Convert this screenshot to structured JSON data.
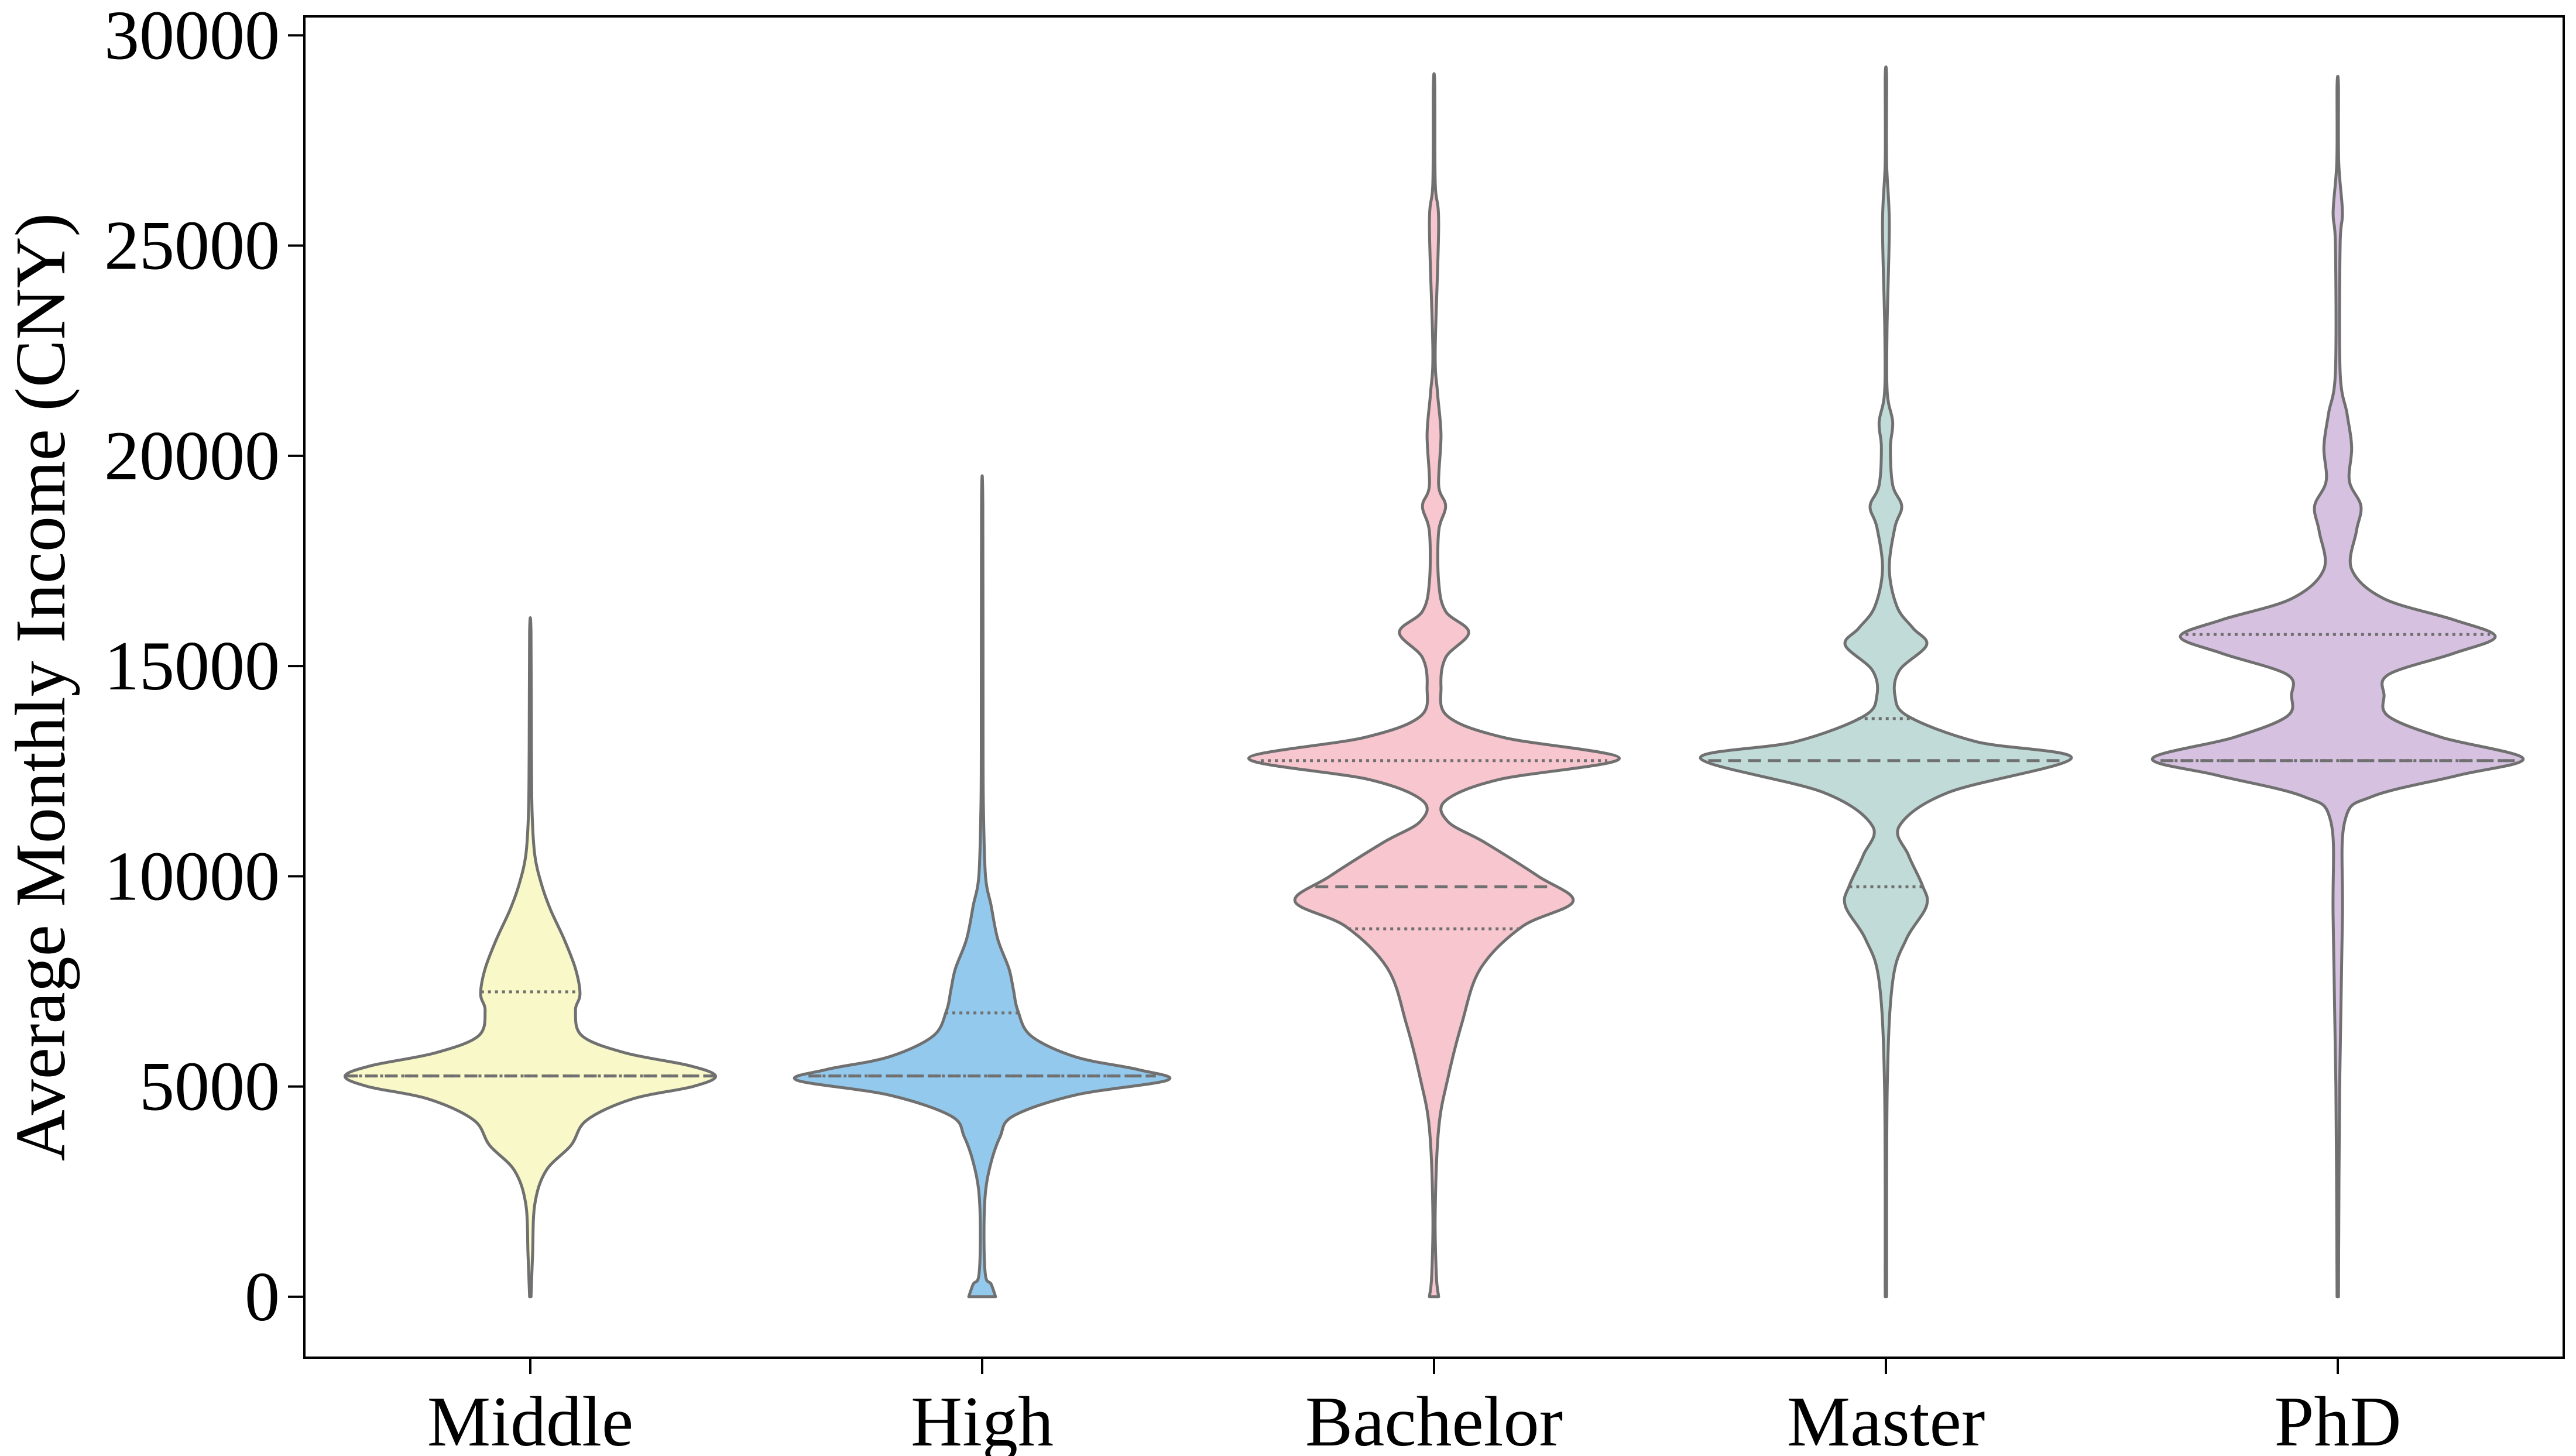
{
  "chart_data": {
    "type": "violin",
    "title": "",
    "xlabel": "",
    "ylabel": "Average Monthly Income (CNY)",
    "ylim": [
      -1450,
      30450
    ],
    "yticks": [
      0,
      5000,
      10000,
      15000,
      20000,
      25000,
      30000
    ],
    "grid": false,
    "legend": "none",
    "categories": [
      "Middle",
      "High",
      "Bachelor",
      "Master",
      "PhD"
    ],
    "colors": [
      "#f8f8c8",
      "#94c9ee",
      "#f7c6ce",
      "#c1dbd9",
      "#d6c2e0"
    ],
    "edge_color": "#707070",
    "series": [
      {
        "category": "Middle",
        "min": 0,
        "max": 15800,
        "q1": 5250,
        "median": 5250,
        "q3": 7250,
        "profile": [
          [
            0,
            0.003
          ],
          [
            1000,
            0.01
          ],
          [
            2200,
            0.02
          ],
          [
            3000,
            0.07
          ],
          [
            3600,
            0.18
          ],
          [
            4200,
            0.25
          ],
          [
            4700,
            0.45
          ],
          [
            5000,
            0.72
          ],
          [
            5250,
            0.82
          ],
          [
            5500,
            0.7
          ],
          [
            5800,
            0.42
          ],
          [
            6200,
            0.23
          ],
          [
            6800,
            0.2
          ],
          [
            7200,
            0.22
          ],
          [
            7800,
            0.2
          ],
          [
            8500,
            0.15
          ],
          [
            9200,
            0.09
          ],
          [
            9800,
            0.05
          ],
          [
            10500,
            0.02
          ],
          [
            11500,
            0.008
          ],
          [
            13000,
            0.005
          ],
          [
            15800,
            0.003
          ]
        ]
      },
      {
        "category": "High",
        "min": 0,
        "max": 18800,
        "q1": 5250,
        "median": 5250,
        "q3": 6750,
        "profile": [
          [
            0,
            0.06
          ],
          [
            300,
            0.04
          ],
          [
            500,
            0.015
          ],
          [
            1500,
            0.008
          ],
          [
            2500,
            0.015
          ],
          [
            3200,
            0.04
          ],
          [
            3800,
            0.08
          ],
          [
            4300,
            0.14
          ],
          [
            4800,
            0.42
          ],
          [
            5150,
            0.83
          ],
          [
            5400,
            0.7
          ],
          [
            5700,
            0.42
          ],
          [
            6200,
            0.22
          ],
          [
            6800,
            0.16
          ],
          [
            7300,
            0.14
          ],
          [
            7800,
            0.12
          ],
          [
            8500,
            0.07
          ],
          [
            9300,
            0.04
          ],
          [
            10000,
            0.015
          ],
          [
            11500,
            0.006
          ],
          [
            13000,
            0.004
          ],
          [
            18800,
            0.003
          ]
        ]
      },
      {
        "category": "Bachelor",
        "min": 0,
        "max": 28800,
        "q1": 8750,
        "median": 9750,
        "q3": 12750,
        "profile": [
          [
            0,
            0.02
          ],
          [
            500,
            0.01
          ],
          [
            2000,
            0.005
          ],
          [
            4000,
            0.02
          ],
          [
            5200,
            0.06
          ],
          [
            6500,
            0.12
          ],
          [
            7800,
            0.2
          ],
          [
            8800,
            0.38
          ],
          [
            9400,
            0.6
          ],
          [
            10000,
            0.45
          ],
          [
            10800,
            0.22
          ],
          [
            11300,
            0.06
          ],
          [
            11800,
            0.05
          ],
          [
            12300,
            0.28
          ],
          [
            12800,
            0.8
          ],
          [
            13300,
            0.3
          ],
          [
            13800,
            0.06
          ],
          [
            14500,
            0.03
          ],
          [
            15200,
            0.05
          ],
          [
            15800,
            0.15
          ],
          [
            16300,
            0.05
          ],
          [
            17000,
            0.02
          ],
          [
            18200,
            0.02
          ],
          [
            18800,
            0.05
          ],
          [
            19300,
            0.02
          ],
          [
            20500,
            0.03
          ],
          [
            21500,
            0.015
          ],
          [
            22500,
            0.005
          ],
          [
            25500,
            0.02
          ],
          [
            26500,
            0.005
          ],
          [
            28800,
            0.003
          ]
        ]
      },
      {
        "category": "Master",
        "min": 0,
        "max": 29000,
        "q1": 9750,
        "median": 12750,
        "q3": 13750,
        "profile": [
          [
            0,
            0.003
          ],
          [
            5000,
            0.006
          ],
          [
            7500,
            0.03
          ],
          [
            8500,
            0.09
          ],
          [
            9300,
            0.18
          ],
          [
            9800,
            0.16
          ],
          [
            10500,
            0.1
          ],
          [
            11200,
            0.06
          ],
          [
            12000,
            0.28
          ],
          [
            12800,
            0.82
          ],
          [
            13200,
            0.4
          ],
          [
            13800,
            0.1
          ],
          [
            14300,
            0.04
          ],
          [
            14900,
            0.06
          ],
          [
            15500,
            0.18
          ],
          [
            15900,
            0.12
          ],
          [
            16400,
            0.05
          ],
          [
            17300,
            0.015
          ],
          [
            18300,
            0.04
          ],
          [
            18800,
            0.07
          ],
          [
            19300,
            0.03
          ],
          [
            20200,
            0.02
          ],
          [
            20800,
            0.03
          ],
          [
            21500,
            0.006
          ],
          [
            23000,
            0.005
          ],
          [
            25500,
            0.015
          ],
          [
            27000,
            0.003
          ],
          [
            29000,
            0.003
          ]
        ]
      },
      {
        "category": "PhD",
        "min": 0,
        "max": 28800,
        "q1": 12750,
        "median": 12750,
        "q3": 15750,
        "profile": [
          [
            0,
            0.003
          ],
          [
            5000,
            0.008
          ],
          [
            9000,
            0.02
          ],
          [
            11300,
            0.03
          ],
          [
            11900,
            0.15
          ],
          [
            12400,
            0.52
          ],
          [
            12800,
            0.8
          ],
          [
            13300,
            0.45
          ],
          [
            13800,
            0.22
          ],
          [
            14300,
            0.2
          ],
          [
            14800,
            0.22
          ],
          [
            15300,
            0.5
          ],
          [
            15700,
            0.68
          ],
          [
            16100,
            0.5
          ],
          [
            16600,
            0.2
          ],
          [
            17300,
            0.06
          ],
          [
            18200,
            0.08
          ],
          [
            18800,
            0.1
          ],
          [
            19400,
            0.05
          ],
          [
            20200,
            0.06
          ],
          [
            21000,
            0.04
          ],
          [
            22000,
            0.01
          ],
          [
            25000,
            0.01
          ],
          [
            25800,
            0.02
          ],
          [
            27000,
            0.004
          ],
          [
            28800,
            0.003
          ]
        ]
      }
    ]
  }
}
